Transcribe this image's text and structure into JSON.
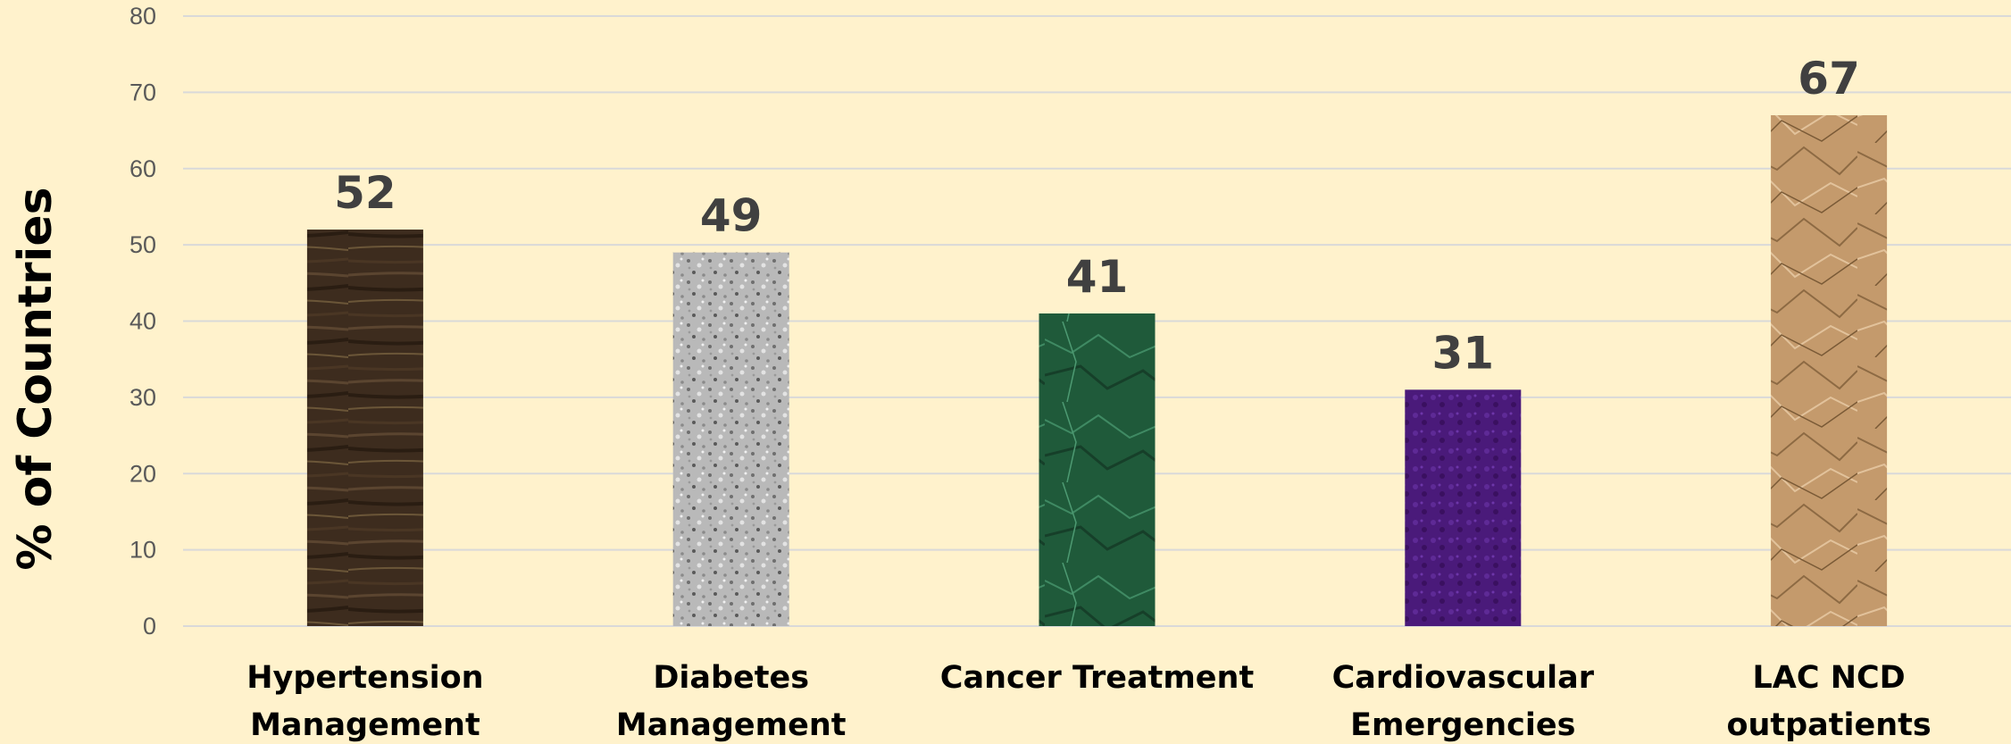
{
  "chart_data": {
    "type": "bar",
    "title": "",
    "xlabel": "",
    "ylabel": "% of Countries",
    "ylim": [
      0,
      80
    ],
    "yticks": [
      0,
      10,
      20,
      30,
      40,
      50,
      60,
      70,
      80
    ],
    "grid": true,
    "legend": "none",
    "categories": [
      [
        "Hypertension",
        "Management"
      ],
      [
        "Diabetes",
        "Management"
      ],
      [
        "Cancer Treatment"
      ],
      [
        "Cardiovascular",
        "Emergencies"
      ],
      [
        "LAC NCD",
        "outpatients"
      ]
    ],
    "values": [
      52,
      49,
      41,
      31,
      67
    ],
    "bar_colors": [
      "#3d2c1e",
      "#a9a9a9",
      "#1f5a3a",
      "#4a1a7a",
      "#c49a6c"
    ],
    "background_color": "#fff2cc"
  }
}
